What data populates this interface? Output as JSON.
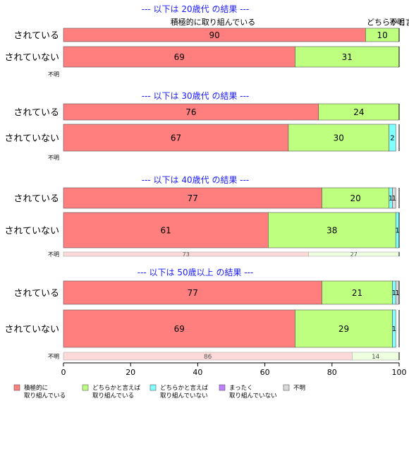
{
  "chart_data": {
    "type": "bar",
    "orientation": "horizontal",
    "stacked": true,
    "xlim": [
      0,
      100
    ],
    "x_ticks": [
      "0",
      "20",
      "40",
      "60",
      "80",
      "100"
    ],
    "categories_legend": [
      "積極的に取り組んでいる",
      "どちらかと言えば取り組んでいる",
      "どちらかと言えば取り組んでいない",
      "まったく取り組んでいない",
      "不明"
    ],
    "legend": [
      {
        "lines": [
          "積極的に",
          "取り組んでいる"
        ],
        "color": "#ff7f7f"
      },
      {
        "lines": [
          "どちらかと言えば",
          "取り組んでいる"
        ],
        "color": "#bfff7f"
      },
      {
        "lines": [
          "どちらかと言えば",
          "取り組んでいない"
        ],
        "color": "#7fffff"
      },
      {
        "lines": [
          "まったく",
          "取り組んでいない"
        ],
        "color": "#bf7fff"
      },
      {
        "lines": [
          "不明"
        ],
        "color": "#d9d9d9"
      }
    ],
    "legend_position": "bottom",
    "top_labels": [
      "積極的に取り組んでいる",
      "どちらかと言えば",
      "不明"
    ],
    "panels": [
      {
        "title": "--- 以下は 20歳代 の結果 ---",
        "rows": [
          {
            "label": "されている",
            "values": [
              90,
              10,
              0,
              0,
              0
            ],
            "labels": [
              "90",
              "10",
              "",
              "",
              ""
            ]
          },
          {
            "label": "されていない",
            "values": [
              69,
              31,
              0,
              0,
              0
            ],
            "labels": [
              "69",
              "31",
              "",
              "",
              ""
            ]
          },
          {
            "label": "不明",
            "values": [],
            "labels": []
          }
        ]
      },
      {
        "title": "--- 以下は 30歳代 の結果 ---",
        "rows": [
          {
            "label": "されている",
            "values": [
              76,
              24,
              0,
              0,
              0
            ],
            "labels": [
              "76",
              "24",
              "",
              "",
              ""
            ]
          },
          {
            "label": "されていない",
            "values": [
              67,
              30,
              2,
              0,
              0
            ],
            "labels": [
              "67",
              "30",
              "2",
              "",
              ""
            ]
          },
          {
            "label": "不明",
            "values": [],
            "labels": []
          }
        ]
      },
      {
        "title": "--- 以下は 40歳代 の結果 ---",
        "rows": [
          {
            "label": "されている",
            "values": [
              77,
              20,
              1,
              0,
              1
            ],
            "labels": [
              "77",
              "20",
              "1",
              "",
              "1"
            ]
          },
          {
            "label": "されていない",
            "values": [
              61,
              38,
              1,
              0,
              0
            ],
            "labels": [
              "61",
              "38",
              "1",
              "",
              ""
            ]
          },
          {
            "label": "不明",
            "values": [
              73,
              27,
              0,
              0,
              0
            ],
            "labels": [
              "73",
              "27",
              "",
              "",
              ""
            ]
          }
        ]
      },
      {
        "title": "--- 以下は 50歳以上 の結果 ---",
        "rows": [
          {
            "label": "されている",
            "values": [
              77,
              21,
              1,
              0,
              1
            ],
            "labels": [
              "77",
              "21",
              "1",
              "",
              "1"
            ]
          },
          {
            "label": "されていない",
            "values": [
              69,
              29,
              1,
              0,
              0
            ],
            "labels": [
              "69",
              "29",
              "1",
              "",
              ""
            ]
          },
          {
            "label": "不明",
            "values": [
              86,
              14,
              0,
              0,
              0
            ],
            "labels": [
              "86",
              "14",
              "",
              "",
              ""
            ]
          }
        ]
      }
    ]
  }
}
